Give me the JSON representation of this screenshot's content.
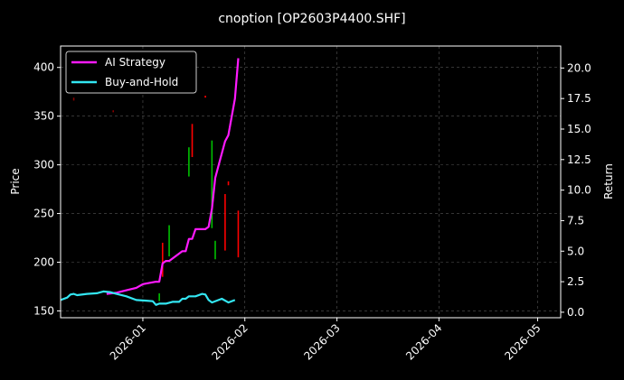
{
  "chart_data": {
    "type": "line",
    "title": "cnoption [OP2603P4400.SHF]",
    "ylabel": "Price",
    "y2label": "Return",
    "xlim": [
      "2025-12-07",
      "2026-05-08"
    ],
    "ylim": [
      143,
      422
    ],
    "y2lim": [
      -0.45,
      21.8
    ],
    "grid": true,
    "legend_position": "top-left",
    "x_ticks": [
      "2026-01-01",
      "2026-02-01",
      "2026-03-01",
      "2026-04-01",
      "2026-05-01"
    ],
    "x_tick_labels": [
      "2026-01",
      "2026-02",
      "2026-03",
      "2026-04",
      "2026-05"
    ],
    "y_ticks": [
      150,
      200,
      250,
      300,
      350,
      400
    ],
    "y2_ticks": [
      0.0,
      2.5,
      5.0,
      7.5,
      10.0,
      12.5,
      15.0,
      17.5,
      20.0
    ],
    "y2_tick_labels": [
      "0.0",
      "2.5",
      "5.0",
      "7.5",
      "10.0",
      "12.5",
      "15.0",
      "17.5",
      "20.0"
    ],
    "series": [
      {
        "name": "AI Strategy",
        "axis": "right",
        "color": "#ff1aff",
        "points": [
          [
            "2025-12-21",
            1.5
          ],
          [
            "2025-12-24",
            1.6
          ],
          [
            "2025-12-27",
            1.8
          ],
          [
            "2025-12-30",
            2.0
          ],
          [
            "2026-01-01",
            2.3
          ],
          [
            "2026-01-03",
            2.4
          ],
          [
            "2026-01-05",
            2.5
          ],
          [
            "2026-01-06",
            2.5
          ],
          [
            "2026-01-07",
            4.0
          ],
          [
            "2026-01-08",
            4.2
          ],
          [
            "2026-01-09",
            4.2
          ],
          [
            "2026-01-12",
            4.8
          ],
          [
            "2026-01-13",
            5.0
          ],
          [
            "2026-01-14",
            5.0
          ],
          [
            "2026-01-15",
            6.0
          ],
          [
            "2026-01-16",
            6.0
          ],
          [
            "2026-01-17",
            6.8
          ],
          [
            "2026-01-19",
            6.8
          ],
          [
            "2026-01-20",
            6.8
          ],
          [
            "2026-01-21",
            7.0
          ],
          [
            "2026-01-22",
            8.5
          ],
          [
            "2026-01-23",
            11.0
          ],
          [
            "2026-01-24",
            12.0
          ],
          [
            "2026-01-26",
            14.0
          ],
          [
            "2026-01-27",
            14.5
          ],
          [
            "2026-01-29",
            17.5
          ],
          [
            "2026-01-30",
            20.8
          ]
        ]
      },
      {
        "name": "Buy-and-Hold",
        "axis": "right",
        "color": "#33e6f2",
        "points": [
          [
            "2025-12-07",
            1.0
          ],
          [
            "2025-12-09",
            1.2
          ],
          [
            "2025-12-10",
            1.45
          ],
          [
            "2025-12-11",
            1.5
          ],
          [
            "2025-12-12",
            1.4
          ],
          [
            "2025-12-15",
            1.5
          ],
          [
            "2025-12-18",
            1.55
          ],
          [
            "2025-12-20",
            1.7
          ],
          [
            "2025-12-22",
            1.65
          ],
          [
            "2025-12-24",
            1.5
          ],
          [
            "2025-12-27",
            1.3
          ],
          [
            "2025-12-30",
            1.0
          ],
          [
            "2026-01-02",
            0.95
          ],
          [
            "2026-01-04",
            0.9
          ],
          [
            "2026-01-05",
            0.6
          ],
          [
            "2026-01-06",
            0.7
          ],
          [
            "2026-01-08",
            0.7
          ],
          [
            "2026-01-10",
            0.85
          ],
          [
            "2026-01-12",
            0.85
          ],
          [
            "2026-01-13",
            1.1
          ],
          [
            "2026-01-14",
            1.1
          ],
          [
            "2026-01-15",
            1.3
          ],
          [
            "2026-01-17",
            1.3
          ],
          [
            "2026-01-19",
            1.5
          ],
          [
            "2026-01-20",
            1.45
          ],
          [
            "2026-01-21",
            1.0
          ],
          [
            "2026-01-22",
            0.8
          ],
          [
            "2026-01-24",
            1.0
          ],
          [
            "2026-01-25",
            1.1
          ],
          [
            "2026-01-27",
            0.8
          ],
          [
            "2026-01-29",
            1.0
          ]
        ]
      }
    ],
    "price_bars": [
      {
        "date": "2026-01-06",
        "low": 160,
        "high": 168,
        "color": "#00c000"
      },
      {
        "date": "2026-01-07",
        "low": 185,
        "high": 220,
        "color": "#ff0000"
      },
      {
        "date": "2026-01-09",
        "low": 206,
        "high": 238,
        "color": "#00c000"
      },
      {
        "date": "2026-01-15",
        "low": 288,
        "high": 318,
        "color": "#00c000"
      },
      {
        "date": "2026-01-16",
        "low": 308,
        "high": 342,
        "color": "#ff0000"
      },
      {
        "date": "2026-01-22",
        "low": 235,
        "high": 325,
        "color": "#00c000"
      },
      {
        "date": "2026-01-23",
        "low": 203,
        "high": 222,
        "color": "#00c000"
      },
      {
        "date": "2026-01-26",
        "low": 212,
        "high": 270,
        "color": "#ff0000"
      },
      {
        "date": "2026-01-27",
        "low": 279,
        "high": 283,
        "color": "#ff0000"
      },
      {
        "date": "2026-01-30",
        "low": 205,
        "high": 253,
        "color": "#ff0000"
      },
      {
        "date": "2026-01-20",
        "low": 369,
        "high": 371,
        "color": "#ff0000"
      },
      {
        "date": "2025-12-11",
        "low": 366,
        "high": 369,
        "color": "#8b0000"
      },
      {
        "date": "2025-12-23",
        "low": 354,
        "high": 356,
        "color": "#8b0000"
      }
    ]
  }
}
